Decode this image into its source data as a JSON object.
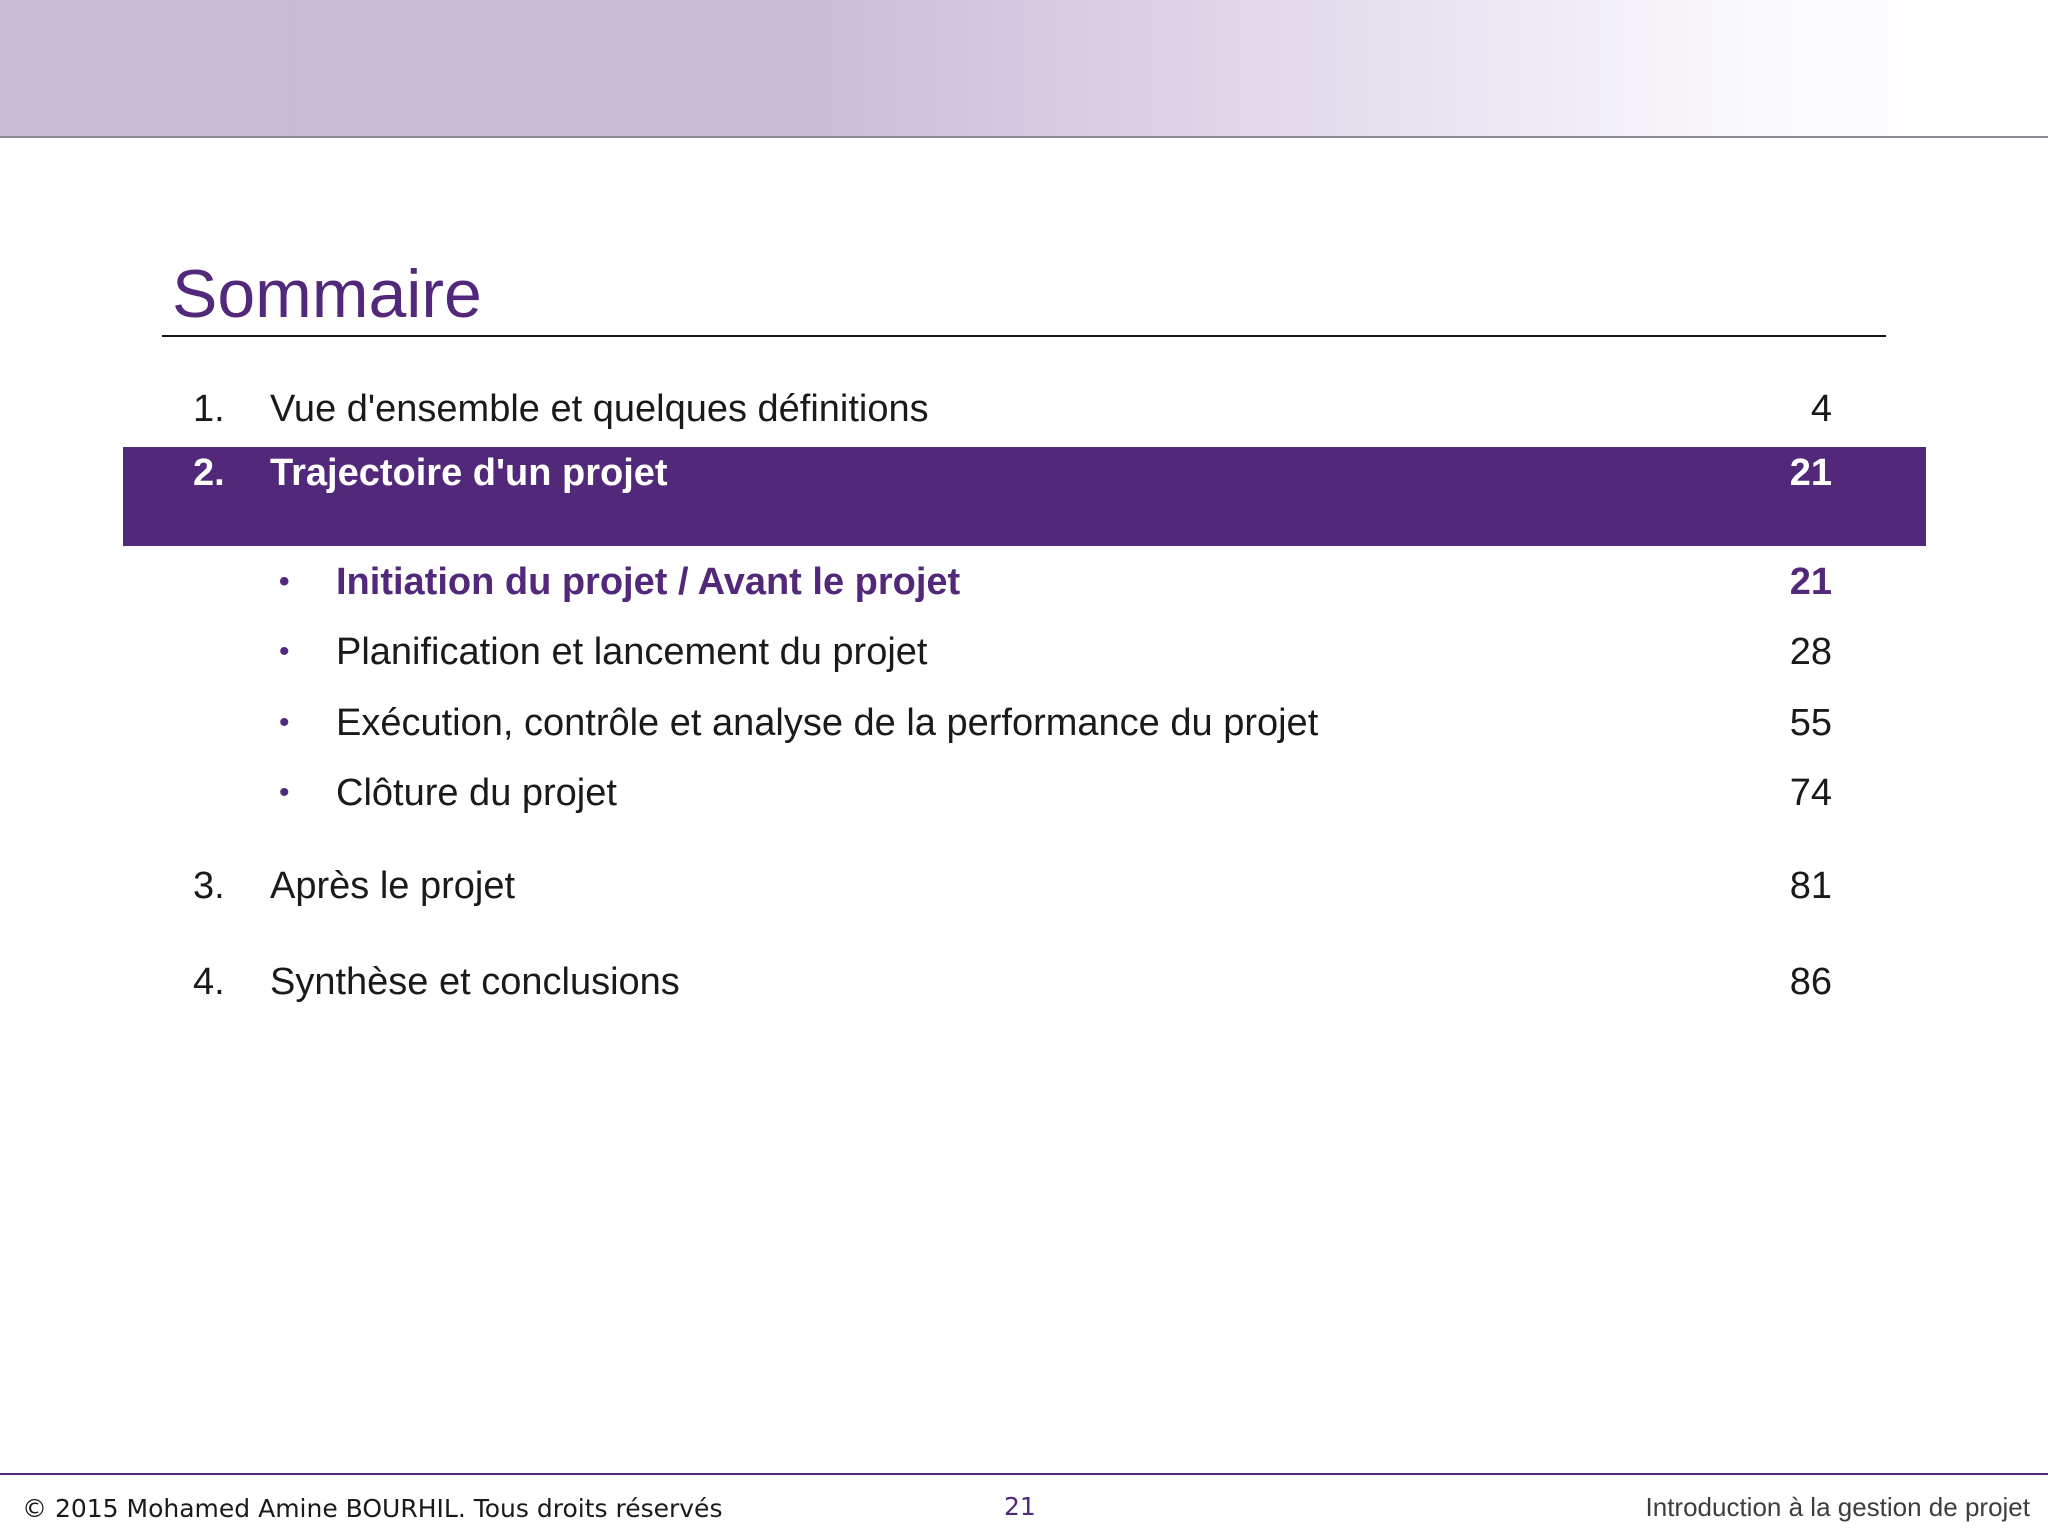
{
  "slide": {
    "title": "Sommaire",
    "sections": [
      {
        "number": "1.",
        "label": "Vue d'ensemble et quelques définitions",
        "page": "4"
      },
      {
        "number": "2.",
        "label": "Trajectoire d'un projet",
        "page": "21",
        "subsections": [
          {
            "label": "Initiation du projet / Avant le projet",
            "page": "21"
          },
          {
            "label": "Planification et lancement du projet",
            "page": "28"
          },
          {
            "label": "Exécution, contrôle et analyse de la performance du projet",
            "page": "55"
          },
          {
            "label": "Clôture du projet",
            "page": "74"
          }
        ]
      },
      {
        "number": "3.",
        "label": "Après le projet",
        "page": "81"
      },
      {
        "number": "4.",
        "label": "Synthèse et conclusions",
        "page": "86"
      }
    ],
    "bullet_glyph": "•"
  },
  "footer": {
    "copyright": "© 2015 Mohamed Amine BOURHIL. Tous droits réservés",
    "page_number": "21",
    "course_title": "Introduction à la gestion de projet"
  },
  "colors": {
    "accent": "#52297a",
    "text": "#1a1a1a",
    "banner_start": "#c7bbd7",
    "banner_end": "#ffffff"
  }
}
